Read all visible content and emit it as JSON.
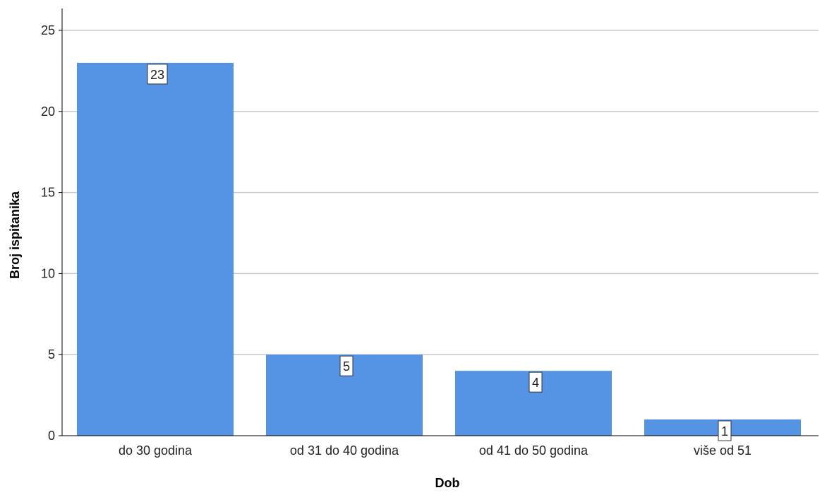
{
  "chart_data": {
    "type": "bar",
    "categories": [
      "do 30 godina",
      "od 31 do 40 godina",
      "od 41 do 50 godina",
      "više od 51"
    ],
    "values": [
      23,
      5,
      4,
      1
    ],
    "data_labels": [
      "23",
      "5",
      "4",
      "1"
    ],
    "title": "",
    "xlabel": "Dob",
    "ylabel": "Broj ispitanika",
    "ylim": [
      0,
      25
    ],
    "yticks": [
      0,
      5,
      10,
      15,
      20,
      25
    ],
    "grid": true,
    "legend": "none",
    "colors": {
      "bar": "#5594e4",
      "grid": "#c8c8c8",
      "axis": "#000000"
    }
  }
}
